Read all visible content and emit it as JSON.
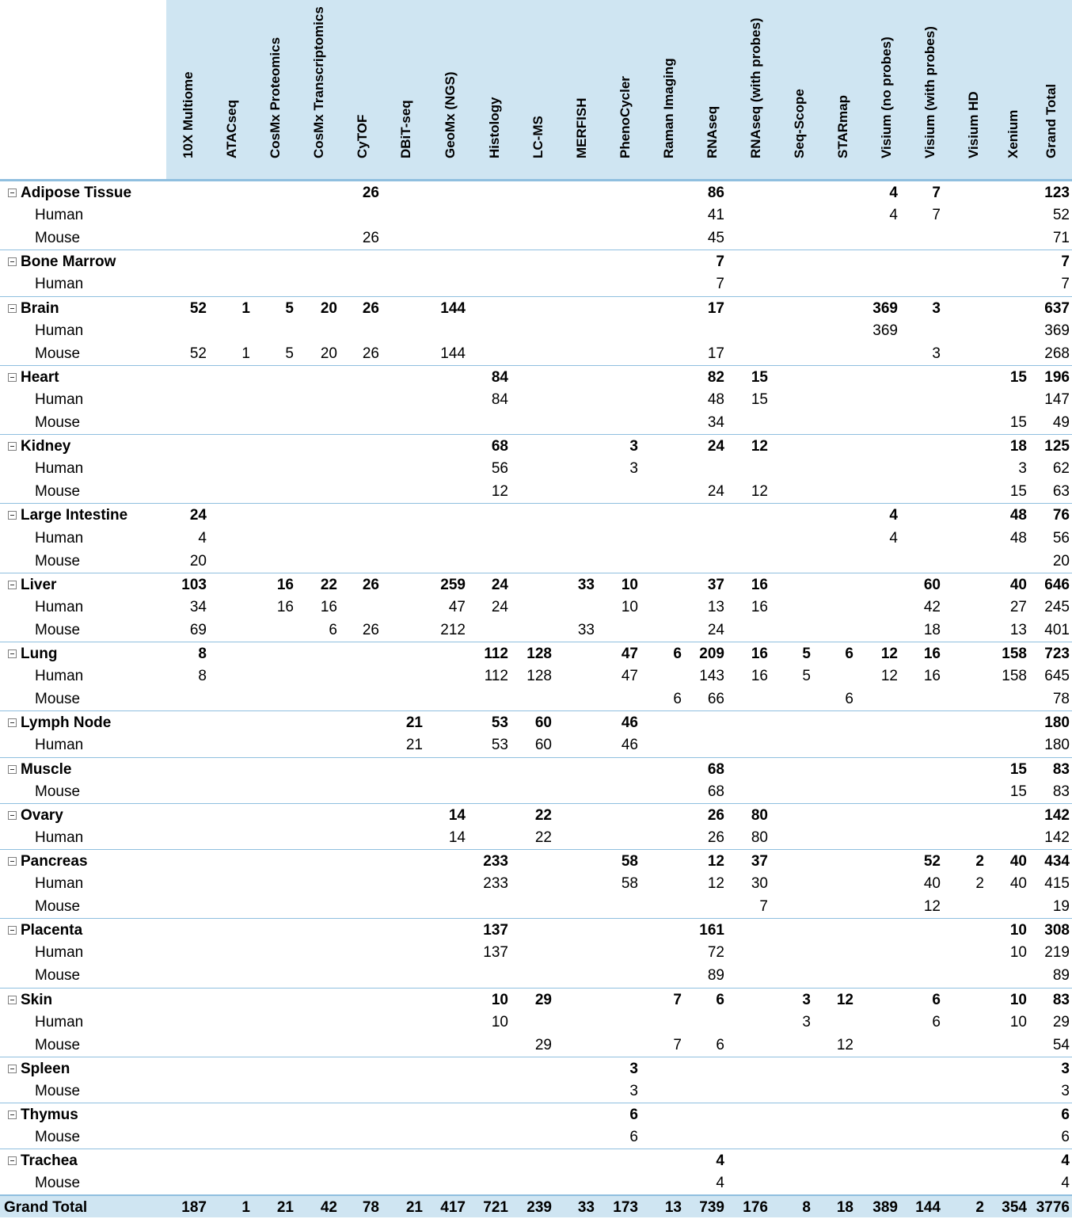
{
  "columns": [
    "10X Multiome",
    "ATACseq",
    "CosMx Proteomics",
    "CosMx Transcriptomics",
    "CyTOF",
    "DBiT-seq",
    "GeoMx (NGS)",
    "Histology",
    "LC-MS",
    "MERFISH",
    "PhenoCycler",
    "Raman Imaging",
    "RNAseq",
    "RNAseq (with probes)",
    "Seq-Scope",
    "STARmap",
    "Visium (no probes)",
    "Visium (with probes)",
    "Visium HD",
    "Xenium",
    "Grand Total"
  ],
  "rows": [
    {
      "type": "tissue",
      "label": "Adipose Tissue",
      "values": [
        "",
        "",
        "",
        "",
        "26",
        "",
        "",
        "",
        "",
        "",
        "",
        "",
        "86",
        "",
        "",
        "",
        "4",
        "7",
        "",
        "",
        "123"
      ]
    },
    {
      "type": "species",
      "label": "Human",
      "values": [
        "",
        "",
        "",
        "",
        "",
        "",
        "",
        "",
        "",
        "",
        "",
        "",
        "41",
        "",
        "",
        "",
        "4",
        "7",
        "",
        "",
        "52"
      ]
    },
    {
      "type": "species",
      "label": "Mouse",
      "values": [
        "",
        "",
        "",
        "",
        "26",
        "",
        "",
        "",
        "",
        "",
        "",
        "",
        "45",
        "",
        "",
        "",
        "",
        "",
        "",
        "",
        "71"
      ]
    },
    {
      "type": "tissue",
      "label": "Bone Marrow",
      "values": [
        "",
        "",
        "",
        "",
        "",
        "",
        "",
        "",
        "",
        "",
        "",
        "",
        "7",
        "",
        "",
        "",
        "",
        "",
        "",
        "",
        "7"
      ]
    },
    {
      "type": "species",
      "label": "Human",
      "values": [
        "",
        "",
        "",
        "",
        "",
        "",
        "",
        "",
        "",
        "",
        "",
        "",
        "7",
        "",
        "",
        "",
        "",
        "",
        "",
        "",
        "7"
      ]
    },
    {
      "type": "tissue",
      "label": "Brain",
      "values": [
        "52",
        "1",
        "5",
        "20",
        "26",
        "",
        "144",
        "",
        "",
        "",
        "",
        "",
        "17",
        "",
        "",
        "",
        "369",
        "3",
        "",
        "",
        "637"
      ]
    },
    {
      "type": "species",
      "label": "Human",
      "values": [
        "",
        "",
        "",
        "",
        "",
        "",
        "",
        "",
        "",
        "",
        "",
        "",
        "",
        "",
        "",
        "",
        "369",
        "",
        "",
        "",
        "369"
      ]
    },
    {
      "type": "species",
      "label": "Mouse",
      "values": [
        "52",
        "1",
        "5",
        "20",
        "26",
        "",
        "144",
        "",
        "",
        "",
        "",
        "",
        "17",
        "",
        "",
        "",
        "",
        "3",
        "",
        "",
        "268"
      ]
    },
    {
      "type": "tissue",
      "label": "Heart",
      "values": [
        "",
        "",
        "",
        "",
        "",
        "",
        "",
        "84",
        "",
        "",
        "",
        "",
        "82",
        "15",
        "",
        "",
        "",
        "",
        "",
        "15",
        "196"
      ]
    },
    {
      "type": "species",
      "label": "Human",
      "values": [
        "",
        "",
        "",
        "",
        "",
        "",
        "",
        "84",
        "",
        "",
        "",
        "",
        "48",
        "15",
        "",
        "",
        "",
        "",
        "",
        "",
        "147"
      ]
    },
    {
      "type": "species",
      "label": "Mouse",
      "values": [
        "",
        "",
        "",
        "",
        "",
        "",
        "",
        "",
        "",
        "",
        "",
        "",
        "34",
        "",
        "",
        "",
        "",
        "",
        "",
        "15",
        "49"
      ]
    },
    {
      "type": "tissue",
      "label": "Kidney",
      "values": [
        "",
        "",
        "",
        "",
        "",
        "",
        "",
        "68",
        "",
        "",
        "3",
        "",
        "24",
        "12",
        "",
        "",
        "",
        "",
        "",
        "18",
        "125"
      ]
    },
    {
      "type": "species",
      "label": "Human",
      "values": [
        "",
        "",
        "",
        "",
        "",
        "",
        "",
        "56",
        "",
        "",
        "3",
        "",
        "",
        "",
        "",
        "",
        "",
        "",
        "",
        "3",
        "62"
      ]
    },
    {
      "type": "species",
      "label": "Mouse",
      "values": [
        "",
        "",
        "",
        "",
        "",
        "",
        "",
        "12",
        "",
        "",
        "",
        "",
        "24",
        "12",
        "",
        "",
        "",
        "",
        "",
        "15",
        "63"
      ]
    },
    {
      "type": "tissue",
      "label": "Large Intestine",
      "values": [
        "24",
        "",
        "",
        "",
        "",
        "",
        "",
        "",
        "",
        "",
        "",
        "",
        "",
        "",
        "",
        "",
        "4",
        "",
        "",
        "48",
        "76"
      ]
    },
    {
      "type": "species",
      "label": "Human",
      "values": [
        "4",
        "",
        "",
        "",
        "",
        "",
        "",
        "",
        "",
        "",
        "",
        "",
        "",
        "",
        "",
        "",
        "4",
        "",
        "",
        "48",
        "56"
      ]
    },
    {
      "type": "species",
      "label": "Mouse",
      "values": [
        "20",
        "",
        "",
        "",
        "",
        "",
        "",
        "",
        "",
        "",
        "",
        "",
        "",
        "",
        "",
        "",
        "",
        "",
        "",
        "",
        "20"
      ]
    },
    {
      "type": "tissue",
      "label": "Liver",
      "values": [
        "103",
        "",
        "16",
        "22",
        "26",
        "",
        "259",
        "24",
        "",
        "33",
        "10",
        "",
        "37",
        "16",
        "",
        "",
        "",
        "60",
        "",
        "40",
        "646"
      ]
    },
    {
      "type": "species",
      "label": "Human",
      "values": [
        "34",
        "",
        "16",
        "16",
        "",
        "",
        "47",
        "24",
        "",
        "",
        "10",
        "",
        "13",
        "16",
        "",
        "",
        "",
        "42",
        "",
        "27",
        "245"
      ]
    },
    {
      "type": "species",
      "label": "Mouse",
      "values": [
        "69",
        "",
        "",
        "6",
        "26",
        "",
        "212",
        "",
        "",
        "33",
        "",
        "",
        "24",
        "",
        "",
        "",
        "",
        "18",
        "",
        "13",
        "401"
      ]
    },
    {
      "type": "tissue",
      "label": "Lung",
      "values": [
        "8",
        "",
        "",
        "",
        "",
        "",
        "",
        "112",
        "128",
        "",
        "47",
        "6",
        "209",
        "16",
        "5",
        "6",
        "12",
        "16",
        "",
        "158",
        "723"
      ]
    },
    {
      "type": "species",
      "label": "Human",
      "values": [
        "8",
        "",
        "",
        "",
        "",
        "",
        "",
        "112",
        "128",
        "",
        "47",
        "",
        "143",
        "16",
        "5",
        "",
        "12",
        "16",
        "",
        "158",
        "645"
      ]
    },
    {
      "type": "species",
      "label": "Mouse",
      "values": [
        "",
        "",
        "",
        "",
        "",
        "",
        "",
        "",
        "",
        "",
        "",
        "6",
        "66",
        "",
        "",
        "6",
        "",
        "",
        "",
        "",
        "78"
      ]
    },
    {
      "type": "tissue",
      "label": "Lymph Node",
      "values": [
        "",
        "",
        "",
        "",
        "",
        "21",
        "",
        "53",
        "60",
        "",
        "46",
        "",
        "",
        "",
        "",
        "",
        "",
        "",
        "",
        "",
        "180"
      ]
    },
    {
      "type": "species",
      "label": "Human",
      "values": [
        "",
        "",
        "",
        "",
        "",
        "21",
        "",
        "53",
        "60",
        "",
        "46",
        "",
        "",
        "",
        "",
        "",
        "",
        "",
        "",
        "",
        "180"
      ]
    },
    {
      "type": "tissue",
      "label": "Muscle",
      "values": [
        "",
        "",
        "",
        "",
        "",
        "",
        "",
        "",
        "",
        "",
        "",
        "",
        "68",
        "",
        "",
        "",
        "",
        "",
        "",
        "15",
        "83"
      ]
    },
    {
      "type": "species",
      "label": "Mouse",
      "values": [
        "",
        "",
        "",
        "",
        "",
        "",
        "",
        "",
        "",
        "",
        "",
        "",
        "68",
        "",
        "",
        "",
        "",
        "",
        "",
        "15",
        "83"
      ]
    },
    {
      "type": "tissue",
      "label": "Ovary",
      "values": [
        "",
        "",
        "",
        "",
        "",
        "",
        "14",
        "",
        "22",
        "",
        "",
        "",
        "26",
        "80",
        "",
        "",
        "",
        "",
        "",
        "",
        "142"
      ]
    },
    {
      "type": "species",
      "label": "Human",
      "values": [
        "",
        "",
        "",
        "",
        "",
        "",
        "14",
        "",
        "22",
        "",
        "",
        "",
        "26",
        "80",
        "",
        "",
        "",
        "",
        "",
        "",
        "142"
      ]
    },
    {
      "type": "tissue",
      "label": "Pancreas",
      "values": [
        "",
        "",
        "",
        "",
        "",
        "",
        "",
        "233",
        "",
        "",
        "58",
        "",
        "12",
        "37",
        "",
        "",
        "",
        "52",
        "2",
        "40",
        "434"
      ]
    },
    {
      "type": "species",
      "label": "Human",
      "values": [
        "",
        "",
        "",
        "",
        "",
        "",
        "",
        "233",
        "",
        "",
        "58",
        "",
        "12",
        "30",
        "",
        "",
        "",
        "40",
        "2",
        "40",
        "415"
      ]
    },
    {
      "type": "species",
      "label": "Mouse",
      "values": [
        "",
        "",
        "",
        "",
        "",
        "",
        "",
        "",
        "",
        "",
        "",
        "",
        "",
        "7",
        "",
        "",
        "",
        "12",
        "",
        "",
        "19"
      ]
    },
    {
      "type": "tissue",
      "label": "Placenta",
      "values": [
        "",
        "",
        "",
        "",
        "",
        "",
        "",
        "137",
        "",
        "",
        "",
        "",
        "161",
        "",
        "",
        "",
        "",
        "",
        "",
        "10",
        "308"
      ]
    },
    {
      "type": "species",
      "label": "Human",
      "values": [
        "",
        "",
        "",
        "",
        "",
        "",
        "",
        "137",
        "",
        "",
        "",
        "",
        "72",
        "",
        "",
        "",
        "",
        "",
        "",
        "10",
        "219"
      ]
    },
    {
      "type": "species",
      "label": "Mouse",
      "values": [
        "",
        "",
        "",
        "",
        "",
        "",
        "",
        "",
        "",
        "",
        "",
        "",
        "89",
        "",
        "",
        "",
        "",
        "",
        "",
        "",
        "89"
      ]
    },
    {
      "type": "tissue",
      "label": "Skin",
      "values": [
        "",
        "",
        "",
        "",
        "",
        "",
        "",
        "10",
        "29",
        "",
        "",
        "7",
        "6",
        "",
        "3",
        "12",
        "",
        "6",
        "",
        "10",
        "83"
      ]
    },
    {
      "type": "species",
      "label": "Human",
      "values": [
        "",
        "",
        "",
        "",
        "",
        "",
        "",
        "10",
        "",
        "",
        "",
        "",
        "",
        "",
        "3",
        "",
        "",
        "6",
        "",
        "10",
        "29"
      ]
    },
    {
      "type": "species",
      "label": "Mouse",
      "values": [
        "",
        "",
        "",
        "",
        "",
        "",
        "",
        "",
        "29",
        "",
        "",
        "7",
        "6",
        "",
        "",
        "12",
        "",
        "",
        "",
        "",
        "54"
      ]
    },
    {
      "type": "tissue",
      "label": "Spleen",
      "values": [
        "",
        "",
        "",
        "",
        "",
        "",
        "",
        "",
        "",
        "",
        "3",
        "",
        "",
        "",
        "",
        "",
        "",
        "",
        "",
        "",
        "3"
      ]
    },
    {
      "type": "species",
      "label": "Mouse",
      "values": [
        "",
        "",
        "",
        "",
        "",
        "",
        "",
        "",
        "",
        "",
        "3",
        "",
        "",
        "",
        "",
        "",
        "",
        "",
        "",
        "",
        "3"
      ]
    },
    {
      "type": "tissue",
      "label": "Thymus",
      "values": [
        "",
        "",
        "",
        "",
        "",
        "",
        "",
        "",
        "",
        "",
        "6",
        "",
        "",
        "",
        "",
        "",
        "",
        "",
        "",
        "",
        "6"
      ]
    },
    {
      "type": "species",
      "label": "Mouse",
      "values": [
        "",
        "",
        "",
        "",
        "",
        "",
        "",
        "",
        "",
        "",
        "6",
        "",
        "",
        "",
        "",
        "",
        "",
        "",
        "",
        "",
        "6"
      ]
    },
    {
      "type": "tissue",
      "label": "Trachea",
      "values": [
        "",
        "",
        "",
        "",
        "",
        "",
        "",
        "",
        "",
        "",
        "",
        "",
        "4",
        "",
        "",
        "",
        "",
        "",
        "",
        "",
        "4"
      ]
    },
    {
      "type": "species",
      "label": "Mouse",
      "values": [
        "",
        "",
        "",
        "",
        "",
        "",
        "",
        "",
        "",
        "",
        "",
        "",
        "4",
        "",
        "",
        "",
        "",
        "",
        "",
        "",
        "4"
      ]
    }
  ],
  "grand_total": {
    "label": "Grand Total",
    "values": [
      "187",
      "1",
      "21",
      "42",
      "78",
      "21",
      "417",
      "721",
      "239",
      "33",
      "173",
      "13",
      "739",
      "176",
      "8",
      "18",
      "389",
      "144",
      "2",
      "354",
      "3776"
    ]
  },
  "colors": {
    "header_fill": "#cfe5f2",
    "row_line": "#8fbfdf"
  },
  "icons": {
    "row_toggle": "collapse-minus-icon"
  }
}
